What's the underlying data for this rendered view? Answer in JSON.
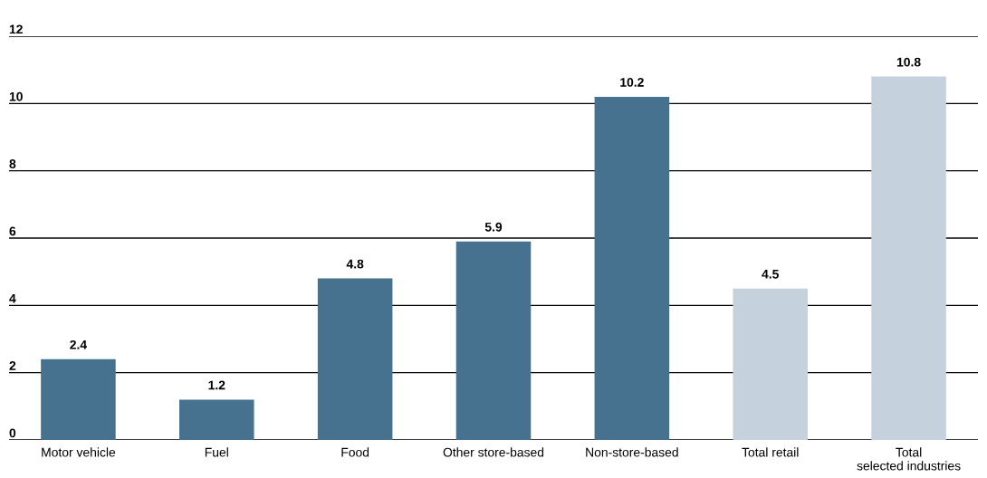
{
  "chart_data": {
    "type": "bar",
    "categories": [
      "Motor vehicle",
      "Fuel",
      "Food",
      "Other store-based",
      "Non-store-based",
      "Total retail",
      "Total\nselected industries"
    ],
    "values": [
      2.4,
      1.2,
      4.8,
      5.9,
      10.2,
      4.5,
      10.8
    ],
    "colors": [
      "#46718f",
      "#46718f",
      "#46718f",
      "#46718f",
      "#46718f",
      "#c5d1dd",
      "#c5d1dd"
    ],
    "ylim": [
      0,
      12
    ],
    "yticks": [
      0,
      2,
      4,
      6,
      8,
      10,
      12
    ],
    "grid": "y",
    "data_labels": true
  }
}
